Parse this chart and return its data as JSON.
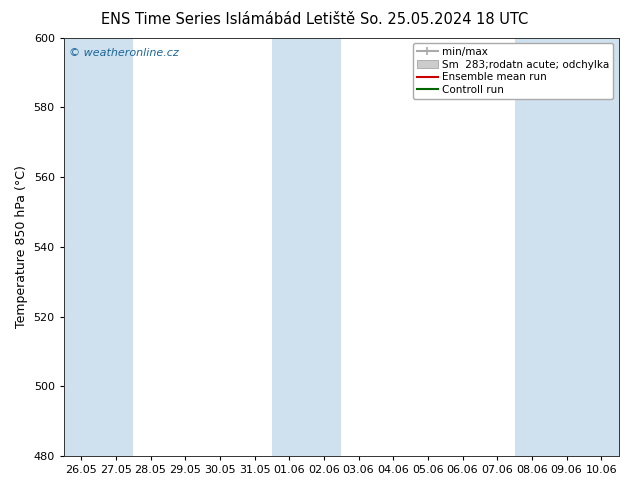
{
  "title_left": "ENS Time Series Islámábád Letiště",
  "title_right": "So. 25.05.2024 18 UTC",
  "ylabel": "Temperature 850 hPa (°C)",
  "ylim": [
    480,
    600
  ],
  "yticks": [
    480,
    500,
    520,
    540,
    560,
    580,
    600
  ],
  "x_labels": [
    "26.05",
    "27.05",
    "28.05",
    "29.05",
    "30.05",
    "31.05",
    "01.06",
    "02.06",
    "03.06",
    "04.06",
    "05.06",
    "06.06",
    "07.06",
    "08.06",
    "09.06",
    "10.06"
  ],
  "shaded_indices": [
    0,
    1,
    6,
    7,
    13,
    14,
    15
  ],
  "band_color": "#cfe0ef",
  "bg_color": "#ffffff",
  "fig_color": "#ffffff",
  "watermark": "© weatheronline.cz",
  "watermark_color": "#1a6699",
  "legend_items": [
    {
      "label": "min/max",
      "color": "#aaaaaa",
      "lw": 1.5,
      "type": "line"
    },
    {
      "label": "Sm  283;rodatn acute; odchylka",
      "color": "#cccccc",
      "lw": 8,
      "type": "patch"
    },
    {
      "label": "Ensemble mean run",
      "color": "#cc0000",
      "lw": 1.5,
      "type": "line"
    },
    {
      "label": "Controll run",
      "color": "#006600",
      "lw": 1.5,
      "type": "line"
    }
  ],
  "title_fontsize": 10.5,
  "tick_fontsize": 8,
  "label_fontsize": 9
}
